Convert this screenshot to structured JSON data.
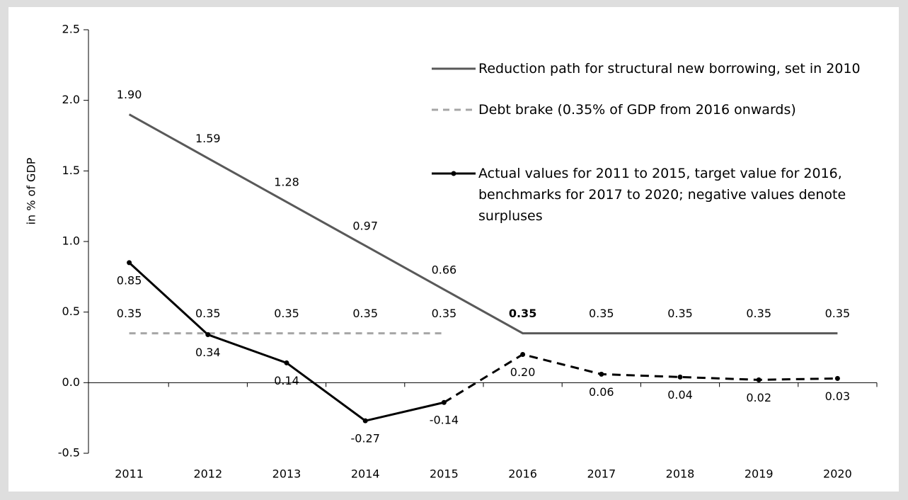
{
  "chart_data": {
    "type": "line",
    "y_axis_label": "in % of GDP",
    "categories": [
      "2011",
      "2012",
      "2013",
      "2014",
      "2015",
      "2016",
      "2017",
      "2018",
      "2019",
      "2020"
    ],
    "ylim": [
      -0.5,
      2.5
    ],
    "yticks": [
      -0.5,
      {
        "value": 0,
        "label": "0.0"
      },
      0.5,
      {
        "value": 1,
        "label": "1.0"
      },
      1.5,
      {
        "value": 2,
        "label": "2.0"
      },
      2.5
    ],
    "legend": "top-right",
    "series": [
      {
        "name": "Reduction path for structural new borrowing, set in 2010",
        "color": "#595959",
        "style": "solid",
        "label_position": "above",
        "bold_label_category": "2016",
        "values": [
          1.9,
          1.59,
          1.28,
          0.97,
          0.66,
          0.35,
          0.35,
          0.35,
          0.35,
          0.35
        ],
        "value_labels": [
          "1.90",
          "1.59",
          "1.28",
          "0.97",
          "0.66",
          "0.35",
          "0.35",
          "0.35",
          "0.35",
          "0.35"
        ]
      },
      {
        "name": "Debt brake (0.35% of GDP from 2016 onwards)",
        "color": "#a6a6a6",
        "style": "dashed",
        "label_position": "above",
        "values": [
          0.35,
          0.35,
          0.35,
          0.35,
          0.35,
          null,
          null,
          null,
          null,
          null
        ],
        "value_labels": [
          "0.35",
          "0.35",
          "0.35",
          "0.35",
          "0.35",
          null,
          null,
          null,
          null,
          null
        ]
      },
      {
        "name": "Actual values for 2011 to 2015, target value for 2016, benchmarks for 2017 to 2020; negative values denote surpluses",
        "color": "#000000",
        "style": "solid",
        "dashed_after": "2015",
        "markers": true,
        "label_position": "below",
        "values": [
          0.85,
          0.34,
          0.14,
          -0.27,
          -0.14,
          0.2,
          0.06,
          0.04,
          0.02,
          0.03
        ],
        "value_labels": [
          "0.85",
          "0.34",
          "0.14",
          "-0.27",
          "-0.14",
          "0.20",
          "0.06",
          "0.04",
          "0.02",
          "0.03"
        ]
      }
    ]
  }
}
